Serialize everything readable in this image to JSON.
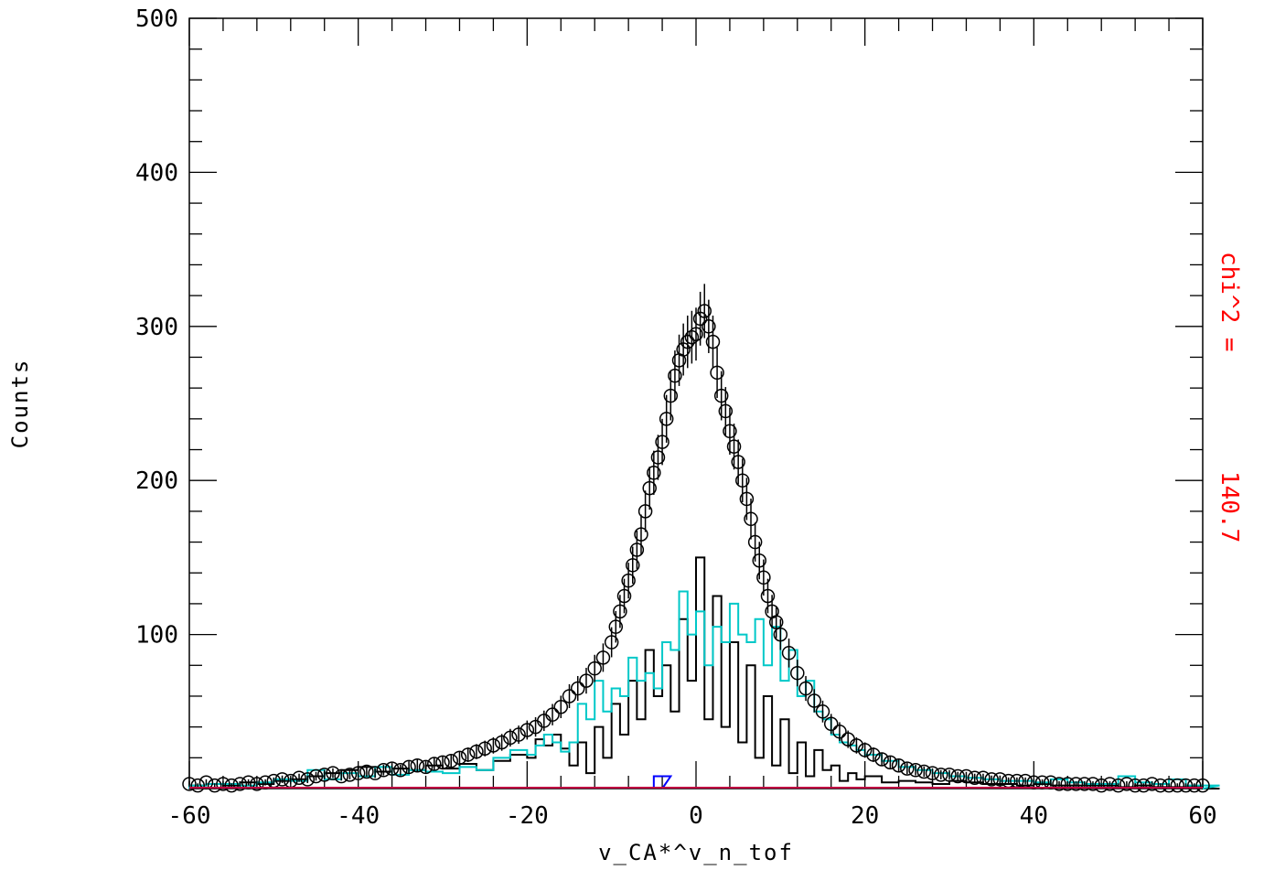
{
  "chart_data": {
    "type": "scatter",
    "title": "",
    "xlabel": "v_CA*^v_n_tof",
    "ylabel": "Counts",
    "xlim": [
      -60,
      60
    ],
    "ylim": [
      0,
      500
    ],
    "x_ticks": [
      "-60",
      "-40",
      "-20",
      "0",
      "20",
      "40",
      "60"
    ],
    "y_ticks": [
      "100",
      "200",
      "300",
      "400",
      "500"
    ],
    "annotation": {
      "label": "chi^2 =",
      "value": "140.7"
    },
    "grid": false,
    "legend": "none",
    "colors": {
      "data": "#000000",
      "model_black": "#000000",
      "model_cyan": "#00c8c8",
      "blue": "#0000ff",
      "baseline": "#c00040",
      "annotation": "#ff0000"
    },
    "series": [
      {
        "style": "points-with-errorbars",
        "x": [
          -60,
          -59,
          -58,
          -57,
          -56,
          -55,
          -54,
          -53,
          -52,
          -51,
          -50,
          -49,
          -48,
          -47,
          -46,
          -45,
          -44,
          -43,
          -42,
          -41,
          -40,
          -39,
          -38,
          -37,
          -36,
          -35,
          -34,
          -33,
          -32,
          -31,
          -30,
          -29,
          -28,
          -27,
          -26,
          -25,
          -24,
          -23,
          -22,
          -21,
          -20,
          -19,
          -18,
          -17,
          -16,
          -15,
          -14,
          -13,
          -12,
          -11,
          -10,
          -9.5,
          -9,
          -8.5,
          -8,
          -7.5,
          -7,
          -6.5,
          -6,
          -5.5,
          -5,
          -4.5,
          -4,
          -3.5,
          -3,
          -2.5,
          -2,
          -1.5,
          -1,
          -0.5,
          0,
          0.5,
          1,
          1.5,
          2,
          2.5,
          3,
          3.5,
          4,
          4.5,
          5,
          5.5,
          6,
          6.5,
          7,
          7.5,
          8,
          8.5,
          9,
          9.5,
          10,
          11,
          12,
          13,
          14,
          15,
          16,
          17,
          18,
          19,
          20,
          21,
          22,
          23,
          24,
          25,
          26,
          27,
          28,
          29,
          30,
          31,
          32,
          33,
          34,
          35,
          36,
          37,
          38,
          39,
          40,
          41,
          42,
          43,
          44,
          45,
          46,
          47,
          48,
          49,
          50,
          51,
          52,
          53,
          54,
          55,
          56,
          57,
          58,
          59,
          60
        ],
        "values": [
          3,
          2,
          4,
          2,
          3,
          2,
          3,
          4,
          3,
          4,
          5,
          6,
          5,
          7,
          6,
          8,
          9,
          10,
          8,
          9,
          10,
          11,
          10,
          12,
          13,
          12,
          14,
          15,
          14,
          16,
          17,
          18,
          20,
          22,
          24,
          26,
          28,
          30,
          33,
          35,
          38,
          40,
          44,
          48,
          53,
          60,
          65,
          70,
          78,
          85,
          95,
          105,
          115,
          125,
          135,
          145,
          155,
          165,
          180,
          195,
          205,
          215,
          225,
          240,
          255,
          268,
          278,
          285,
          290,
          293,
          295,
          305,
          310,
          300,
          290,
          270,
          255,
          245,
          232,
          222,
          212,
          200,
          188,
          175,
          160,
          148,
          137,
          125,
          115,
          108,
          100,
          88,
          75,
          65,
          57,
          50,
          42,
          37,
          32,
          28,
          25,
          22,
          19,
          17,
          15,
          13,
          12,
          11,
          10,
          9,
          9,
          8,
          8,
          7,
          7,
          6,
          6,
          5,
          5,
          5,
          4,
          4,
          4,
          3,
          3,
          3,
          3,
          3,
          2,
          3,
          2,
          3,
          2,
          2,
          3,
          2,
          2,
          2,
          2,
          2,
          2
        ]
      },
      {
        "style": "step",
        "color": "#000000",
        "x": [
          -60,
          -58,
          -56,
          -54,
          -52,
          -50,
          -48,
          -46,
          -44,
          -42,
          -40,
          -38,
          -36,
          -34,
          -32,
          -30,
          -28,
          -26,
          -24,
          -22,
          -20,
          -19,
          -18,
          -17,
          -16,
          -15,
          -14,
          -13,
          -12,
          -11,
          -10,
          -9,
          -8,
          -7,
          -6,
          -5,
          -4,
          -3,
          -2,
          -1,
          0,
          1,
          2,
          3,
          4,
          5,
          6,
          7,
          8,
          9,
          10,
          11,
          12,
          13,
          14,
          15,
          16,
          17,
          18,
          19,
          20,
          22,
          24,
          26,
          28,
          30,
          32,
          34,
          36,
          38,
          40,
          42,
          44,
          46,
          48,
          50,
          52,
          54,
          56,
          58,
          60
        ],
        "values": [
          2,
          3,
          2,
          4,
          3,
          5,
          6,
          8,
          10,
          12,
          14,
          11,
          13,
          12,
          15,
          13,
          16,
          12,
          18,
          22,
          20,
          32,
          28,
          35,
          26,
          15,
          30,
          10,
          40,
          20,
          55,
          35,
          70,
          45,
          90,
          60,
          80,
          50,
          110,
          70,
          150,
          45,
          125,
          40,
          95,
          30,
          80,
          20,
          60,
          15,
          45,
          10,
          30,
          8,
          25,
          12,
          15,
          5,
          10,
          6,
          8,
          4,
          5,
          4,
          3,
          5,
          4,
          3,
          3,
          2,
          3,
          2,
          2,
          2,
          2,
          1,
          2,
          1,
          1,
          1,
          0
        ]
      },
      {
        "style": "step",
        "color": "#00c8c8",
        "x": [
          -60,
          -58,
          -56,
          -54,
          -52,
          -50,
          -48,
          -46,
          -44,
          -42,
          -40,
          -38,
          -36,
          -34,
          -32,
          -30,
          -28,
          -26,
          -24,
          -22,
          -20,
          -19,
          -18,
          -17,
          -16,
          -15,
          -14,
          -13,
          -12,
          -11,
          -10,
          -9,
          -8,
          -7,
          -6,
          -5,
          -4,
          -3,
          -2,
          -1,
          0,
          1,
          2,
          3,
          4,
          5,
          6,
          7,
          8,
          9,
          10,
          11,
          12,
          13,
          14,
          15,
          16,
          17,
          18,
          19,
          20,
          22,
          24,
          26,
          28,
          30,
          32,
          34,
          36,
          38,
          40,
          42,
          44,
          46,
          48,
          50,
          52,
          54,
          56,
          58,
          60
        ],
        "values": [
          2,
          3,
          3,
          2,
          4,
          6,
          5,
          12,
          6,
          10,
          8,
          14,
          9,
          12,
          11,
          10,
          14,
          12,
          20,
          25,
          22,
          28,
          35,
          30,
          24,
          30,
          55,
          45,
          70,
          50,
          65,
          60,
          85,
          70,
          75,
          65,
          95,
          90,
          128,
          100,
          115,
          80,
          105,
          95,
          120,
          100,
          95,
          110,
          80,
          105,
          70,
          90,
          60,
          70,
          50,
          45,
          35,
          30,
          28,
          25,
          22,
          18,
          14,
          12,
          10,
          8,
          7,
          6,
          5,
          5,
          4,
          6,
          4,
          3,
          3,
          8,
          4,
          3,
          6,
          2,
          2
        ]
      },
      {
        "style": "step",
        "color": "#0000ff",
        "x": [
          -5,
          -4
        ],
        "values": [
          8,
          8
        ]
      }
    ]
  }
}
